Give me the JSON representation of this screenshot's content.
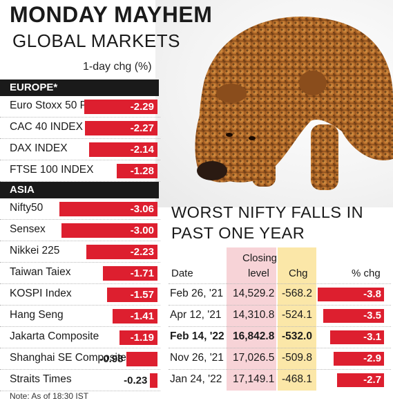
{
  "title": "MONDAY MAYHEM",
  "subtitle": "GLOBAL MARKETS",
  "unit_note": "1-day chg (%)",
  "note": "Note: As of 18:30 IST",
  "colors": {
    "bar": "#dd1f2f",
    "header": "#1a1a1a",
    "closing_col": "#f7d3d7",
    "chg_col": "#fbe7a8"
  },
  "chart_data": [
    {
      "type": "bar",
      "orientation": "horizontal",
      "title": "MONDAY MAYHEM",
      "subtitle": "GLOBAL MARKETS",
      "ylabel": "1-day chg (%)",
      "groups": [
        {
          "name": "EUROPE*",
          "categories": [
            "Euro Stoxx 50 Pr",
            "CAC 40 INDEX",
            "DAX INDEX",
            "FTSE 100 INDEX"
          ],
          "values": [
            -2.29,
            -2.27,
            -2.14,
            -1.28
          ],
          "labels": [
            "-2.29",
            "-2.27",
            "-2.14",
            "-1.28"
          ]
        },
        {
          "name": "ASIA",
          "categories": [
            "Nifty50",
            "Sensex",
            "Nikkei 225",
            "Taiwan Taiex",
            "KOSPI Index",
            "Hang Seng",
            "Jakarta Composite",
            "Shanghai SE Composite",
            "Straits Times"
          ],
          "values": [
            -3.06,
            -3.0,
            -2.23,
            -1.71,
            -1.57,
            -1.41,
            -1.19,
            -0.98,
            -0.23
          ],
          "labels": [
            "-3.06",
            "-3.00",
            "-2.23",
            "-1.71",
            "-1.57",
            "-1.41",
            "-1.19",
            "-0.98",
            "-0.23"
          ]
        }
      ]
    },
    {
      "type": "table",
      "title": "WORST NIFTY FALLS IN PAST ONE YEAR",
      "columns": [
        "Date",
        "Closing level",
        "Chg",
        "% chg"
      ],
      "closing_header_line1": "Closing",
      "closing_header_line2": "level",
      "rows": [
        {
          "date": "Feb 26, '21",
          "closing": "14,529.2",
          "chg": "-568.2",
          "pct_label": "-3.8",
          "pct": -3.8,
          "bold": false
        },
        {
          "date": "Apr 12, '21",
          "closing": "14,310.8",
          "chg": "-524.1",
          "pct_label": "-3.5",
          "pct": -3.5,
          "bold": false
        },
        {
          "date": "Feb 14, '22",
          "closing": "16,842.8",
          "chg": "-532.0",
          "pct_label": "-3.1",
          "pct": -3.1,
          "bold": true
        },
        {
          "date": "Nov 26, '21",
          "closing": "17,026.5",
          "chg": "-509.8",
          "pct_label": "-2.9",
          "pct": -2.9,
          "bold": false
        },
        {
          "date": "Jan 24, '22",
          "closing": "17,149.1",
          "chg": "-468.1",
          "pct_label": "-2.7",
          "pct": -2.7,
          "bold": false
        }
      ]
    }
  ]
}
